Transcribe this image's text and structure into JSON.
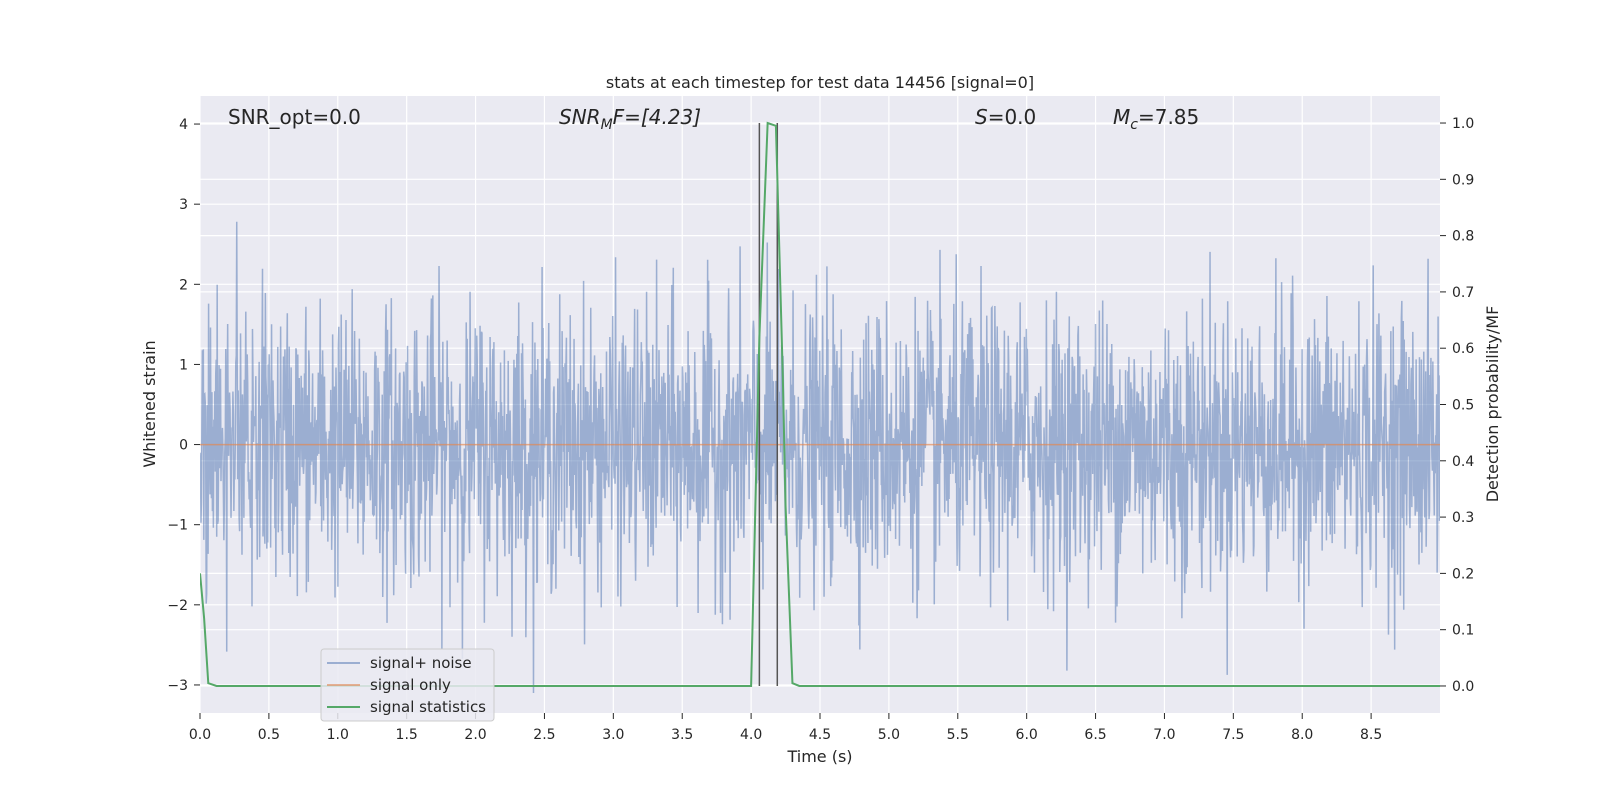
{
  "chart_data": {
    "type": "line",
    "title": "stats at each timestep for test data 14456 [signal=0]",
    "xlabel": "Time (s)",
    "ylabel": "Whitened strain",
    "ylabel_right": "Detection probability/MF",
    "xlim": [
      0.0,
      9.0
    ],
    "ylim": [
      -3.35,
      4.35
    ],
    "ylim_right": [
      -0.048,
      1.048
    ],
    "xticks": [
      "0.0",
      "0.5",
      "1.0",
      "1.5",
      "2.0",
      "2.5",
      "3.0",
      "3.5",
      "4.0",
      "4.5",
      "5.0",
      "5.5",
      "6.0",
      "6.5",
      "7.0",
      "7.5",
      "8.0",
      "8.5"
    ],
    "yticks_left": [
      -3,
      -2,
      -1,
      0,
      1,
      2,
      3,
      4
    ],
    "yticks_left_labels": [
      "−3",
      "−2",
      "−1",
      "0",
      "1",
      "2",
      "3",
      "4"
    ],
    "yticks_right": [
      "0.0",
      "0.1",
      "0.2",
      "0.3",
      "0.4",
      "0.5",
      "0.6",
      "0.7",
      "0.8",
      "0.9",
      "1.0"
    ],
    "grid": true,
    "legend_position": "lower-left",
    "annotations": {
      "snr_opt": "SNR_opt=0.0",
      "snr_mf_base": "SNR",
      "snr_mf_sub": "M",
      "snr_mf_rest": "F=[4.23]",
      "s_base": "S",
      "s_rest": "=0.0",
      "mc_base": "M",
      "mc_sub": "c",
      "mc_rest": "=7.85"
    },
    "series": [
      {
        "name": "signal+ noise",
        "color": "#4c72b0",
        "kind": "noise",
        "description_stats": {
          "std": 0.85,
          "min": -3.1,
          "max": 3.9
        }
      },
      {
        "name": "signal only",
        "color": "#dd8452",
        "x": [
          0.0,
          9.0
        ],
        "y": [
          0.0,
          0.0
        ]
      },
      {
        "name": "signal statistics",
        "color": "#55a868",
        "axis": "right",
        "x": [
          0.0,
          0.03,
          0.06,
          0.12,
          0.25,
          3.5,
          3.95,
          4.0,
          4.06,
          4.12,
          4.18,
          4.23,
          4.25,
          4.3,
          4.35,
          5.0,
          9.0
        ],
        "y": [
          0.2,
          0.12,
          0.005,
          0.0,
          0.0,
          0.0,
          0.0,
          0.0,
          0.62,
          1.0,
          0.995,
          0.55,
          0.32,
          0.005,
          0.0,
          0.0,
          0.0
        ]
      }
    ],
    "vertical_lines": [
      4.06,
      4.19
    ],
    "vertical_lines_color": "#555555"
  }
}
